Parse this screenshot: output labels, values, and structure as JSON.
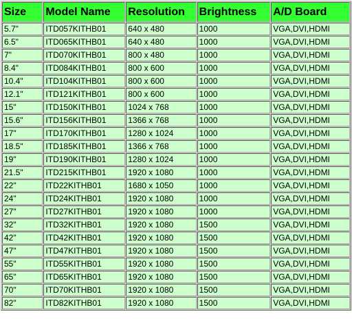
{
  "table": {
    "header": [
      "Size",
      "Model Name",
      "Resolution",
      "Brightness",
      "A/D Board"
    ],
    "rows": [
      [
        "5.7\"",
        "ITD057KITHB01",
        "640 x 480",
        "1000",
        "VGA,DVI,HDMI"
      ],
      [
        "6.5\"",
        "ITD065KITHB01",
        "640 x 480",
        "1000",
        "VGA,DVI,HDMI"
      ],
      [
        "7\"",
        "ITD070KITHB01",
        "800 x 480",
        "1000",
        "VGA,DVI,HDMI"
      ],
      [
        "8.4\"",
        "ITD084KITHB01",
        "800 x 600",
        "1000",
        "VGA,DVI,HDMI"
      ],
      [
        "10.4\"",
        "ITD104KITHB01",
        "800 x 600",
        "1000",
        "VGA,DVI,HDMI"
      ],
      [
        "12.1\"",
        "ITD121KITHB01",
        "800 x 600",
        "1000",
        "VGA,DVI,HDMI"
      ],
      [
        "15\"",
        "ITD150KITHB01",
        "1024 x 768",
        "1000",
        "VGA,DVI,HDMI"
      ],
      [
        "15.6\"",
        "ITD156KITHB01",
        "1366 x 768",
        "1000",
        "VGA,DVI,HDMI"
      ],
      [
        "17\"",
        "ITD170KITHB01",
        "1280 x 1024",
        "1000",
        "VGA,DVI,HDMI"
      ],
      [
        "18.5\"",
        "ITD185KITHB01",
        "1366 x 768",
        "1000",
        "VGA,DVI,HDMI"
      ],
      [
        "19\"",
        "ITD190KITHB01",
        "1280 x 1024",
        "1000",
        "VGA,DVI,HDMI"
      ],
      [
        "21.5\"",
        "ITD215KITHB01",
        "1920 x 1080",
        "1000",
        "VGA,DVI,HDMI"
      ],
      [
        "22\"",
        "ITD22KITHB01",
        "1680 x 1050",
        "1000",
        "VGA,DVI,HDMI"
      ],
      [
        "24\"",
        "ITD24KITHB01",
        "1920 x 1080",
        "1000",
        "VGA,DVI,HDMI"
      ],
      [
        "27\"",
        "ITD27KITHB01",
        "1920 x 1080",
        "1000",
        "VGA,DVI,HDMI"
      ],
      [
        "32\"",
        "ITD32KITHB01",
        "1920 x 1080",
        "1500",
        "VGA,DVI,HDMI"
      ],
      [
        "42\"",
        "ITD42KITHB01",
        "1920 x 1080",
        "1500",
        "VGA,DVI,HDMI"
      ],
      [
        "47\"",
        "ITD47KITHB01",
        "1920 x 1080",
        "1500",
        "VGA,DVI,HDMI"
      ],
      [
        "55\"",
        "ITD55KITHB01",
        "1920 x 1080",
        "1500",
        "VGA,DVI,HDMI"
      ],
      [
        "65\"",
        "ITD65KITHB01",
        "1920 x 1080",
        "1500",
        "VGA,DVI,HDMI"
      ],
      [
        "70\"",
        "ITD70KITHB01",
        "1920 x 1080",
        "1500",
        "VGA,DVI,HDMI"
      ],
      [
        "82\"",
        "ITD82KITHB01",
        "1920 x 1080",
        "1500",
        "VGA,DVI,HDMI"
      ]
    ]
  }
}
